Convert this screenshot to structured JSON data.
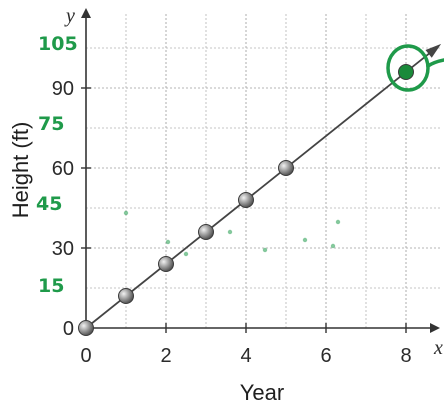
{
  "chart_data": {
    "type": "scatter",
    "xlabel": "Year",
    "ylabel": "Height (ft)",
    "x_axis_letter": "x",
    "y_axis_letter": "y",
    "xlim": [
      0,
      8.6
    ],
    "ylim": [
      0,
      110
    ],
    "x_ticks": [
      0,
      2,
      4,
      6,
      8
    ],
    "y_ticks": [
      0,
      30,
      60,
      90
    ],
    "x_tick_labels": [
      "0",
      "2",
      "4",
      "6",
      "8"
    ],
    "y_tick_labels": [
      "0",
      "30",
      "60",
      "90"
    ],
    "grid": true,
    "points": [
      {
        "x": 0,
        "y": 0
      },
      {
        "x": 1,
        "y": 12
      },
      {
        "x": 2,
        "y": 24
      },
      {
        "x": 3,
        "y": 36
      },
      {
        "x": 4,
        "y": 48
      },
      {
        "x": 5,
        "y": 60
      },
      {
        "x": 8,
        "y": 96
      }
    ],
    "annotations": {
      "handwritten_labels": [
        {
          "text": "105",
          "y": 105
        },
        {
          "text": "75",
          "y": 75
        },
        {
          "text": "45",
          "y": 45
        },
        {
          "text": "15",
          "y": 15
        }
      ]
    },
    "line": {
      "slope": 12,
      "intercept": 0,
      "x_start": 0,
      "x_end": 8.8
    }
  },
  "colors": {
    "grid": "#b4b4b4",
    "axis": "#333333",
    "line": "#444444",
    "point_fill": "#9a9a9a",
    "handwriting": "#1f9a4a",
    "circled_point": "#1a8a3a"
  }
}
